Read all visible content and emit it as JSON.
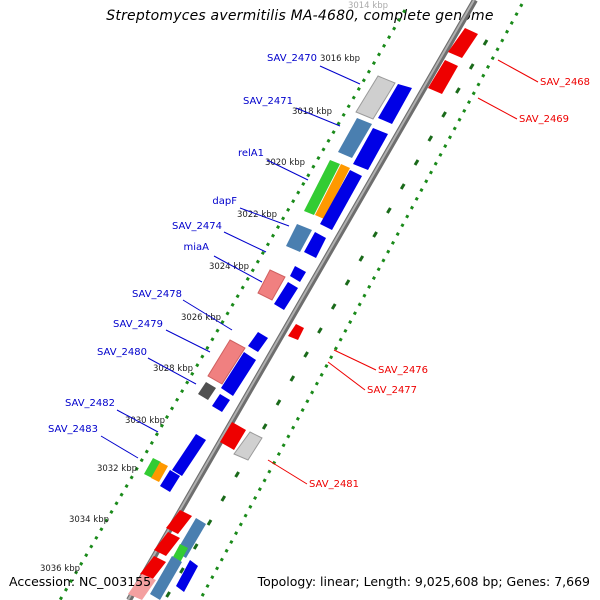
{
  "title": "Streptomyces avermitilis MA-4680, complete genome",
  "footer": {
    "accession": "Accession: NC_003155",
    "summary": "Topology: linear; Length: 9,025,608 bp; Genes: 7,669"
  },
  "colors": {
    "forward_label": "#0000cc",
    "reverse_label": "#ee0000",
    "backbone": "#808080",
    "ticks": "#1a8a1a"
  },
  "scale": {
    "ticks": [
      "3014 kbp",
      "3016 kbp",
      "3018 kbp",
      "3020 kbp",
      "3022 kbp",
      "3024 kbp",
      "3026 kbp",
      "3028 kbp",
      "3030 kbp",
      "3032 kbp",
      "3034 kbp",
      "3036 kbp"
    ]
  },
  "forward_labels": [
    "SAV_2470",
    "SAV_2471",
    "relA1",
    "dapF",
    "SAV_2474",
    "miaA",
    "SAV_2478",
    "SAV_2479",
    "SAV_2480",
    "SAV_2482",
    "SAV_2483"
  ],
  "reverse_labels": [
    "SAV_2468",
    "SAV_2469",
    "SAV_2476",
    "SAV_2477",
    "SAV_2481"
  ]
}
